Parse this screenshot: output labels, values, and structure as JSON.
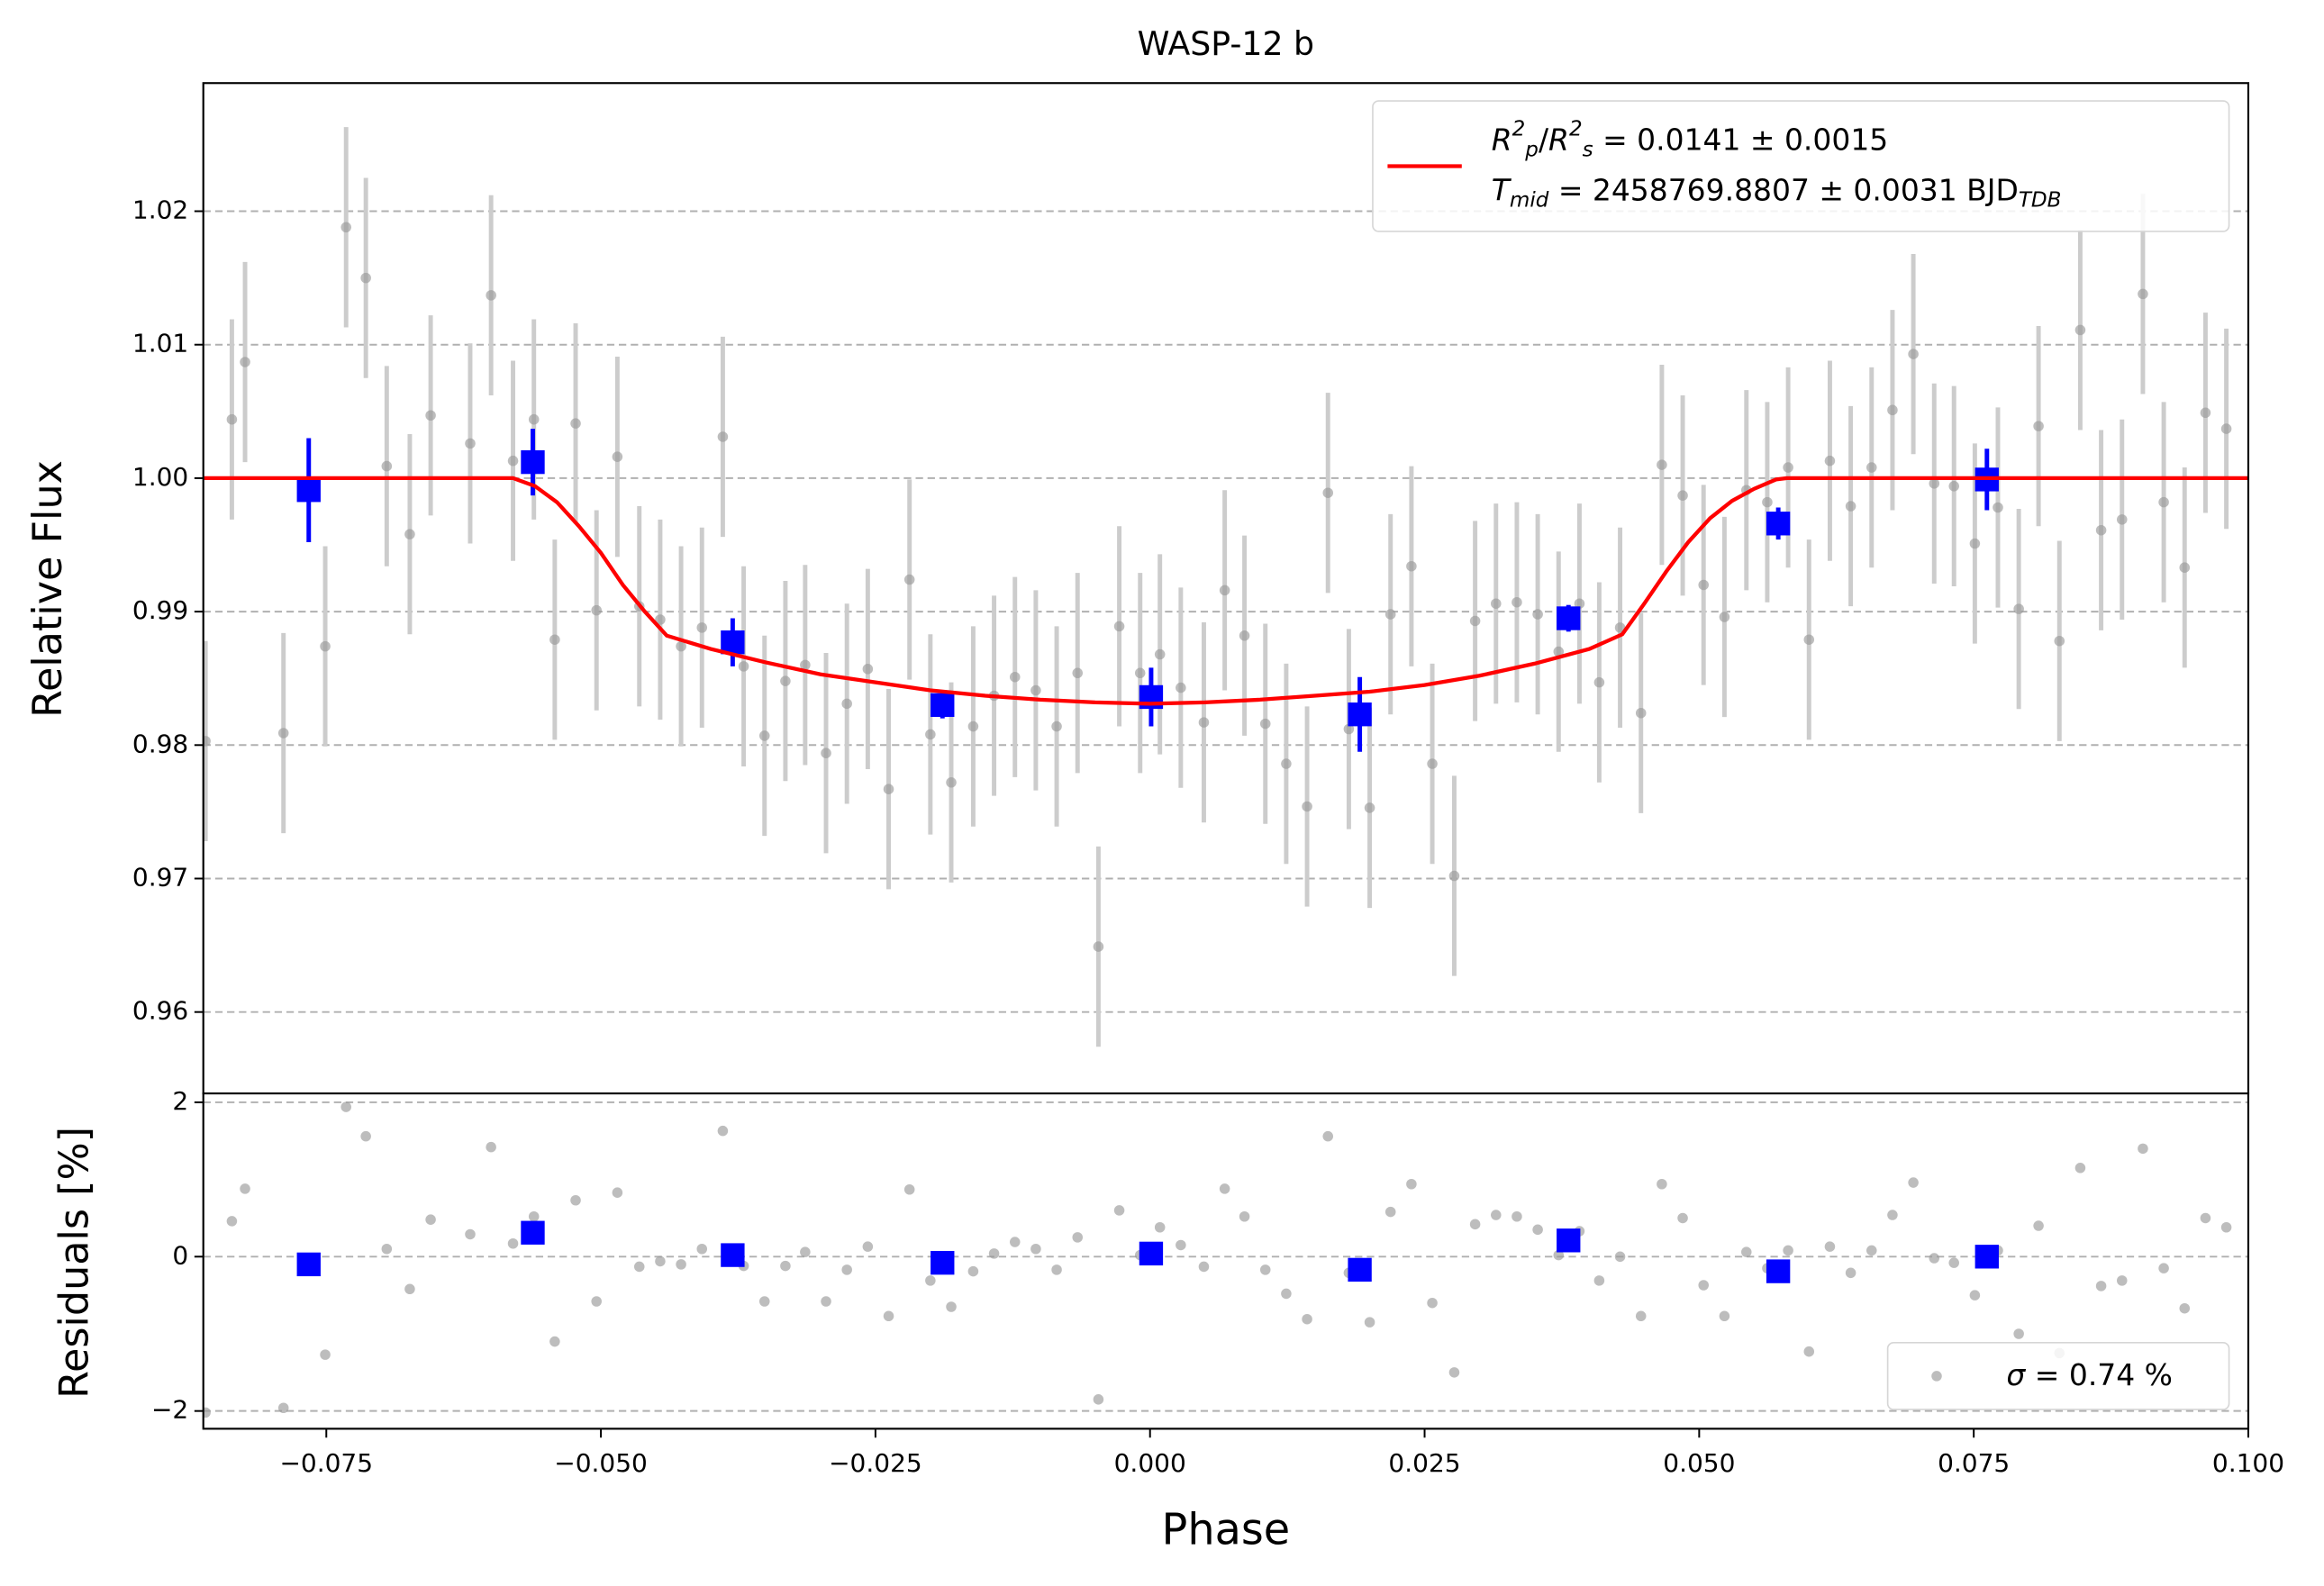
{
  "chart_data": [
    {
      "type": "scatter",
      "title": "WASP-12 b",
      "ylabel": "Relative Flux",
      "xlim": [
        -0.0862,
        0.1
      ],
      "ylim": [
        0.9539,
        1.0296
      ],
      "yticks": [
        0.96,
        0.97,
        0.98,
        0.99,
        {
          "value": 1.0,
          "label": "1.00"
        },
        1.01,
        1.02
      ],
      "grid": true,
      "legend": "upper right",
      "series": [
        {
          "color": "#999999",
          "marker": "circle",
          "errcolor": "#cccccc",
          "yerr": 0.0075,
          "x": [
            -0.086,
            -0.0836,
            -0.0824,
            -0.0789,
            -0.0751,
            -0.0732,
            -0.0714,
            -0.0695,
            -0.0674,
            -0.0655,
            -0.0619,
            -0.06,
            -0.058,
            -0.0561,
            -0.0542,
            -0.0523,
            -0.0504,
            -0.0485,
            -0.0465,
            -0.0446,
            -0.0427,
            -0.0408,
            -0.0389,
            -0.037,
            -0.0351,
            -0.0332,
            -0.0314,
            -0.0295,
            -0.0276,
            -0.0257,
            -0.0238,
            -0.0219,
            -0.02,
            -0.0181,
            -0.0161,
            -0.0142,
            -0.0123,
            -0.0104,
            -0.0085,
            -0.0066,
            -0.0047,
            -0.0028,
            -0.0009,
            0.0009,
            0.0028,
            0.0049,
            0.0068,
            0.0086,
            0.0105,
            0.0124,
            0.0143,
            0.0162,
            0.0181,
            0.02,
            0.0219,
            0.0238,
            0.0257,
            0.0277,
            0.0296,
            0.0315,
            0.0334,
            0.0353,
            0.0372,
            0.0391,
            0.0409,
            0.0428,
            0.0447,
            0.0466,
            0.0485,
            0.0504,
            0.0523,
            0.0543,
            0.0562,
            0.0581,
            0.06,
            0.0619,
            0.0638,
            0.0657,
            0.0676,
            0.0695,
            0.0714,
            0.0732,
            0.0751,
            0.0772,
            0.0791,
            0.0809,
            0.0828,
            0.0847,
            0.0866,
            0.0885,
            0.0904,
            0.0923,
            0.0942,
            0.0961,
            0.098
          ],
          "values": [
            0.9803,
            1.0044,
            1.0087,
            0.9809,
            0.9874,
            1.0188,
            1.015,
            1.0009,
            0.9958,
            1.0047,
            1.0026,
            1.0137,
            1.0013,
            1.0044,
            0.9879,
            1.0041,
            0.9901,
            1.0016,
            0.9904,
            0.9894,
            0.9874,
            0.9888,
            1.0031,
            0.9859,
            0.9807,
            0.9848,
            0.986,
            0.9794,
            0.9831,
            0.9857,
            0.9767,
            0.9924,
            0.9808,
            0.9772,
            0.9814,
            0.9837,
            0.9851,
            0.9841,
            0.9814,
            0.9854,
            0.9649,
            0.9889,
            0.9854,
            0.9868,
            0.9843,
            0.9817,
            0.9916,
            0.9882,
            0.9816,
            0.9786,
            0.9754,
            0.9989,
            0.9812,
            0.9753,
            0.9898,
            0.9934,
            0.9786,
            0.9702,
            0.9893,
            0.9906,
            0.9907,
            0.9898,
            0.987,
            0.9906,
            0.9847,
            0.9888,
            0.9824,
            1.001,
            0.9987,
            0.992,
            0.9896,
            0.9991,
            0.9982,
            1.0008,
            0.9879,
            1.0013,
            0.9979,
            1.0008,
            1.0051,
            1.0093,
            0.9996,
            0.9994,
            0.9951,
            0.9978,
            0.9902,
            1.0039,
            0.9878,
            1.0111,
            0.9961,
            0.9969,
            1.0138,
            0.9982,
            0.9933,
            1.0049,
            1.0037
          ]
        },
        {
          "color": "#0000ff",
          "marker": "square",
          "errcolor": "#0000ff",
          "x": [
            -0.0766,
            -0.0562,
            -0.038,
            -0.0189,
            0.0001,
            0.0191,
            0.0381,
            0.0572,
            0.0762
          ],
          "values": [
            0.9991,
            1.0012,
            0.9877,
            0.983,
            0.9836,
            0.9823,
            0.9895,
            0.9966,
            0.9999
          ],
          "yerr": [
            0.0039,
            0.0025,
            0.0018,
            0.001,
            0.0022,
            0.0028,
            0.001,
            0.0012,
            0.0023
          ]
        },
        {
          "type": "line",
          "color": "#ff0000",
          "name_parts": [
            [
              {
                "t": "R",
                "s": "i"
              },
              {
                "t": "2",
                "s": "sup"
              },
              {
                "t": "p",
                "s": "sub"
              },
              {
                "t": "/",
                "s": ""
              },
              {
                "t": "R",
                "s": "i"
              },
              {
                "t": "2",
                "s": "sup"
              },
              {
                "t": "s",
                "s": "sub"
              },
              {
                "t": " = 0.0141 ± 0.0015",
                "s": ""
              }
            ],
            [
              {
                "t": "T",
                "s": "i"
              },
              {
                "t": "mid",
                "s": "sub"
              },
              {
                "t": " = 2458769.8807 ± 0.0031 BJD",
                "s": ""
              },
              {
                "t": "TDB",
                "s": "sub"
              }
            ]
          ],
          "x": [
            -0.0862,
            -0.058,
            -0.056,
            -0.054,
            -0.052,
            -0.05,
            -0.048,
            -0.046,
            -0.044,
            -0.04,
            -0.035,
            -0.03,
            -0.025,
            -0.02,
            -0.015,
            -0.01,
            -0.005,
            0,
            0.005,
            0.01,
            0.015,
            0.02,
            0.025,
            0.03,
            0.035,
            0.04,
            0.043,
            0.045,
            0.047,
            0.049,
            0.051,
            0.053,
            0.055,
            0.057,
            0.058,
            0.1
          ],
          "values": [
            1.0,
            1.0,
            0.9994,
            0.9982,
            0.9964,
            0.9944,
            0.992,
            0.99,
            0.9882,
            0.9872,
            0.9862,
            0.9853,
            0.9847,
            0.9841,
            0.9837,
            0.9834,
            0.9832,
            0.9831,
            0.9832,
            0.9834,
            0.9837,
            0.984,
            0.9845,
            0.9852,
            0.9861,
            0.9872,
            0.9883,
            0.9906,
            0.993,
            0.9952,
            0.997,
            0.9983,
            0.9992,
            0.9999,
            1.0,
            1.0
          ]
        }
      ]
    },
    {
      "type": "scatter",
      "ylabel": "Residuals [%]",
      "xlabel": "Phase",
      "xlim": [
        -0.0862,
        0.1
      ],
      "ylim": [
        -2.23,
        2.115
      ],
      "xticks": [
        {
          "value": -0.075,
          "label": "−0.075"
        },
        {
          "value": -0.05,
          "label": "−0.050"
        },
        {
          "value": -0.025,
          "label": "−0.025"
        },
        {
          "value": 0,
          "label": "0.000"
        },
        {
          "value": 0.025,
          "label": "0.025"
        },
        {
          "value": 0.05,
          "label": "0.050"
        },
        {
          "value": 0.075,
          "label": "0.075"
        },
        {
          "value": 0.1,
          "label": "0.100"
        }
      ],
      "yticks": [
        {
          "value": -2,
          "label": "−2"
        },
        0,
        2
      ],
      "grid": true,
      "legend": "lower right",
      "series": [
        {
          "color": "#999999",
          "marker": "circle",
          "name_parts": [
            [
              {
                "t": "σ",
                "s": "i"
              },
              {
                "t": " = 0.74 %",
                "s": ""
              }
            ]
          ],
          "x": [
            -0.086,
            -0.0836,
            -0.0824,
            -0.0789,
            -0.0751,
            -0.0732,
            -0.0714,
            -0.0695,
            -0.0674,
            -0.0655,
            -0.0619,
            -0.06,
            -0.058,
            -0.0561,
            -0.0542,
            -0.0523,
            -0.0504,
            -0.0485,
            -0.0465,
            -0.0446,
            -0.0427,
            -0.0408,
            -0.0389,
            -0.037,
            -0.0351,
            -0.0332,
            -0.0314,
            -0.0295,
            -0.0276,
            -0.0257,
            -0.0238,
            -0.0219,
            -0.02,
            -0.0181,
            -0.0161,
            -0.0142,
            -0.0123,
            -0.0104,
            -0.0085,
            -0.0066,
            -0.0047,
            -0.0028,
            -0.0009,
            0.0009,
            0.0028,
            0.0049,
            0.0068,
            0.0086,
            0.0105,
            0.0124,
            0.0143,
            0.0162,
            0.0181,
            0.02,
            0.0219,
            0.0238,
            0.0257,
            0.0277,
            0.0296,
            0.0315,
            0.0334,
            0.0353,
            0.0372,
            0.0391,
            0.0409,
            0.0428,
            0.0447,
            0.0466,
            0.0485,
            0.0504,
            0.0523,
            0.0543,
            0.0562,
            0.0581,
            0.06,
            0.0619,
            0.0638,
            0.0657,
            0.0676,
            0.0695,
            0.0714,
            0.0732,
            0.0751,
            0.0772,
            0.0791,
            0.0809,
            0.0828,
            0.0847,
            0.0866,
            0.0885,
            0.0904,
            0.0923,
            0.0942,
            0.0961,
            0.098
          ],
          "values": [
            -2.02,
            0.46,
            0.88,
            -1.96,
            -1.27,
            1.94,
            1.56,
            0.1,
            -0.42,
            0.48,
            0.29,
            1.42,
            0.17,
            0.52,
            -1.1,
            0.73,
            -0.58,
            0.83,
            -0.13,
            -0.06,
            -0.1,
            0.1,
            1.63,
            -0.12,
            -0.58,
            -0.12,
            0.06,
            -0.58,
            -0.17,
            0.13,
            -0.77,
            0.87,
            -0.31,
            -0.65,
            -0.19,
            0.04,
            0.19,
            0.1,
            -0.17,
            0.25,
            -1.85,
            0.6,
            0.02,
            0.38,
            0.15,
            -0.13,
            0.88,
            0.52,
            -0.17,
            -0.48,
            -0.81,
            1.56,
            -0.21,
            -0.85,
            0.58,
            0.94,
            -0.6,
            -1.5,
            0.42,
            0.54,
            0.52,
            0.35,
            0.02,
            0.33,
            -0.31,
            0.0,
            -0.77,
            0.94,
            0.5,
            -0.37,
            -0.77,
            0.06,
            -0.15,
            0.08,
            -1.23,
            0.13,
            -0.21,
            0.08,
            0.54,
            0.96,
            -0.02,
            -0.08,
            -0.5,
            0.08,
            -1.0,
            0.4,
            -1.25,
            1.15,
            -0.38,
            -0.31,
            1.4,
            -0.15,
            -0.67,
            0.5,
            0.38
          ]
        },
        {
          "color": "#0000ff",
          "marker": "square",
          "x": [
            -0.0766,
            -0.0562,
            -0.038,
            -0.0189,
            0.0001,
            0.0191,
            0.0381,
            0.0572,
            0.0762
          ],
          "values": [
            -0.1,
            0.31,
            0.02,
            -0.08,
            0.04,
            -0.17,
            0.21,
            -0.19,
            0.0
          ]
        }
      ]
    }
  ]
}
